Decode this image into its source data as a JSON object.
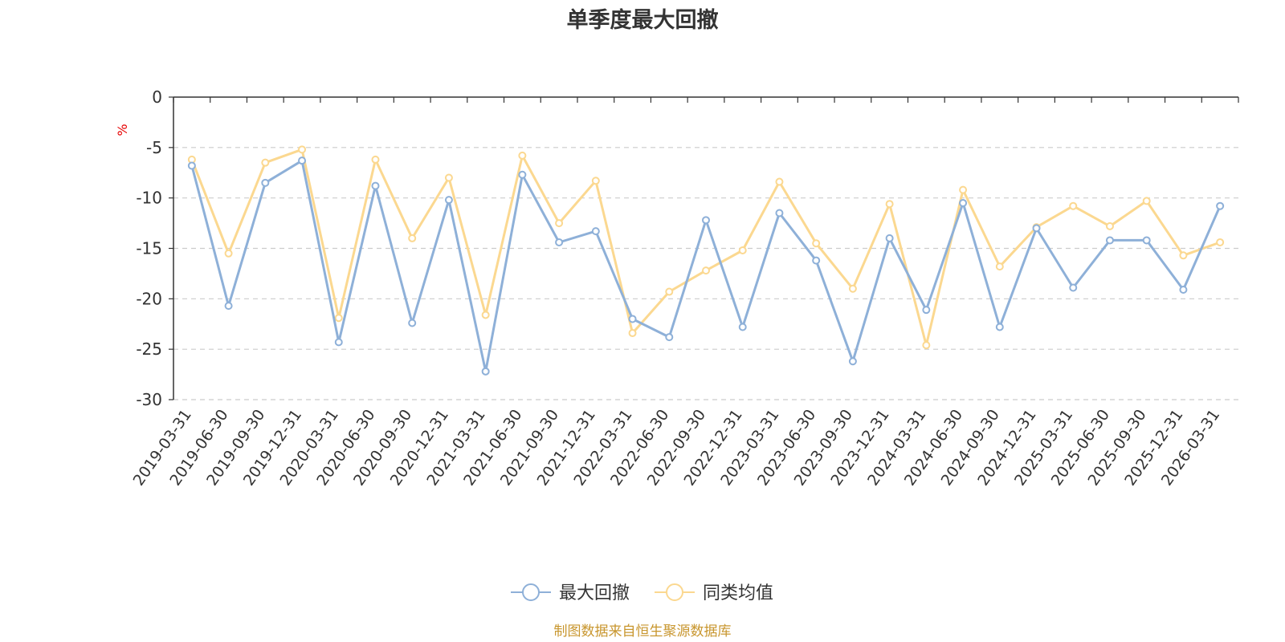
{
  "chart_data": {
    "type": "line",
    "title": "单季度最大回撤",
    "ylabel": "%",
    "ylim": [
      -30,
      0
    ],
    "yticks": [
      0,
      -5,
      -10,
      -15,
      -20,
      -25,
      -30
    ],
    "grid": true,
    "legend_position": "bottom",
    "categories": [
      "2019-03-31",
      "2019-06-30",
      "2019-09-30",
      "2019-12-31",
      "2020-03-31",
      "2020-06-30",
      "2020-09-30",
      "2020-12-31",
      "2021-03-31",
      "2021-06-30",
      "2021-09-30",
      "2021-12-31",
      "2022-03-31",
      "2022-06-30",
      "2022-09-30",
      "2022-12-31",
      "2023-03-31",
      "2023-06-30",
      "2023-09-30",
      "2023-12-31",
      "2024-03-31",
      "2024-06-30",
      "2024-09-30",
      "2024-12-31",
      "2025-03-31",
      "2025-06-30",
      "2025-09-30",
      "2025-12-31",
      "2026-03-31"
    ],
    "series": [
      {
        "name": "最大回撤",
        "color": "#8eb0d8",
        "values": [
          -6.8,
          -20.7,
          -8.5,
          -6.3,
          -24.3,
          -8.8,
          -22.4,
          -10.2,
          -27.2,
          -7.7,
          -14.4,
          -13.3,
          -22.0,
          -23.8,
          -12.2,
          -22.8,
          -11.5,
          -16.2,
          -26.2,
          -14.0,
          -21.1,
          -10.5,
          -22.8,
          -13.0,
          -18.9,
          -14.2,
          -14.2,
          -19.1,
          -10.8
        ]
      },
      {
        "name": "同类均值",
        "color": "#fbd890",
        "values": [
          -6.2,
          -15.5,
          -6.5,
          -5.2,
          -21.9,
          -6.2,
          -14.0,
          -8.0,
          -21.6,
          -5.8,
          -12.5,
          -8.3,
          -23.4,
          -19.3,
          -17.2,
          -15.2,
          -8.4,
          -14.5,
          -19.0,
          -10.6,
          -24.6,
          -9.2,
          -16.8,
          -12.9,
          -10.8,
          -12.8,
          -10.3,
          -15.7,
          -14.4
        ]
      }
    ]
  },
  "source_text": "制图数据来自恒生聚源数据库"
}
